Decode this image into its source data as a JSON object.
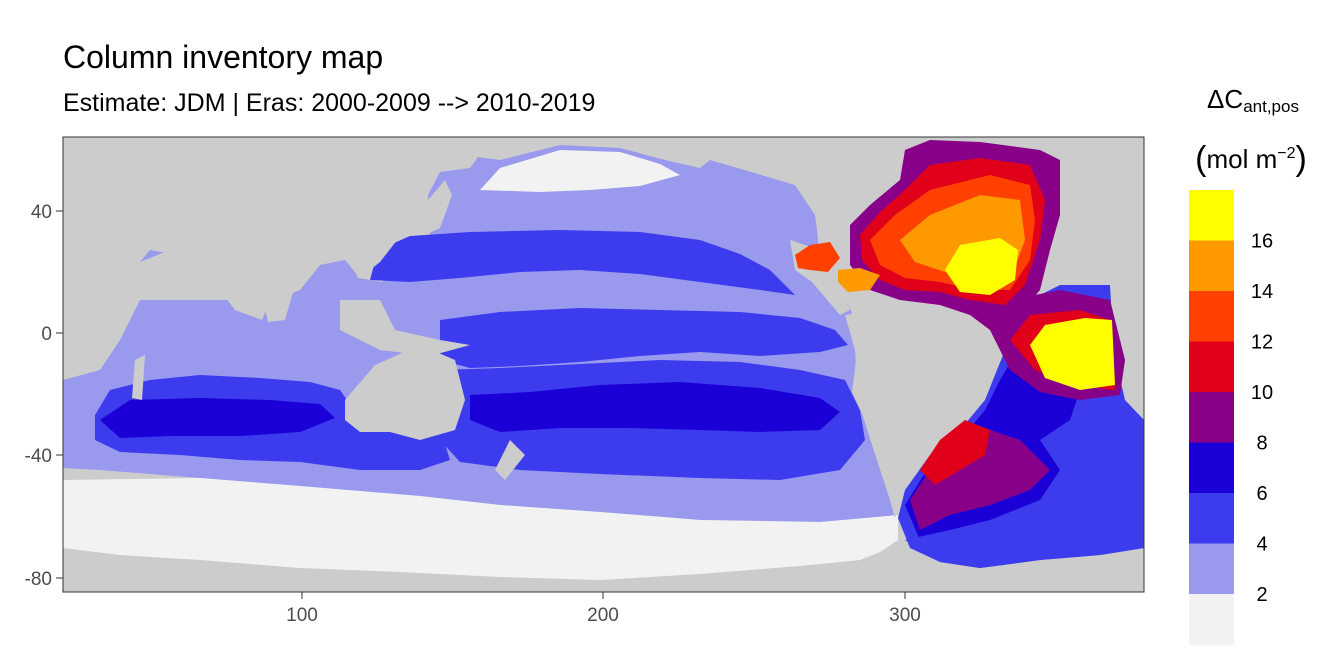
{
  "header": {
    "title": "Column inventory map",
    "subtitle": "Estimate: JDM  | Eras: 2000-2009 --> 2010-2019"
  },
  "legend": {
    "symbol": "ΔC",
    "subscript": "ant,pos",
    "unit_base": "mol m",
    "unit_exp": "−2",
    "paren_open": "(",
    "paren_close": ")",
    "breaks": [
      "2",
      "4",
      "6",
      "8",
      "10",
      "12",
      "14",
      "16"
    ],
    "colors": [
      "#f2f2f2",
      "#9999ee",
      "#3c3cee",
      "#1a00d6",
      "#880088",
      "#e0001a",
      "#ff4000",
      "#ff9900",
      "#ffff00"
    ]
  },
  "map": {
    "land_color": "#cccccc",
    "lon_range": [
      20,
      380
    ],
    "lat_range": [
      -85,
      65
    ],
    "x_ticks": [
      "100",
      "200",
      "300"
    ],
    "y_ticks": [
      "40",
      "0",
      "-40",
      "-80"
    ]
  }
}
